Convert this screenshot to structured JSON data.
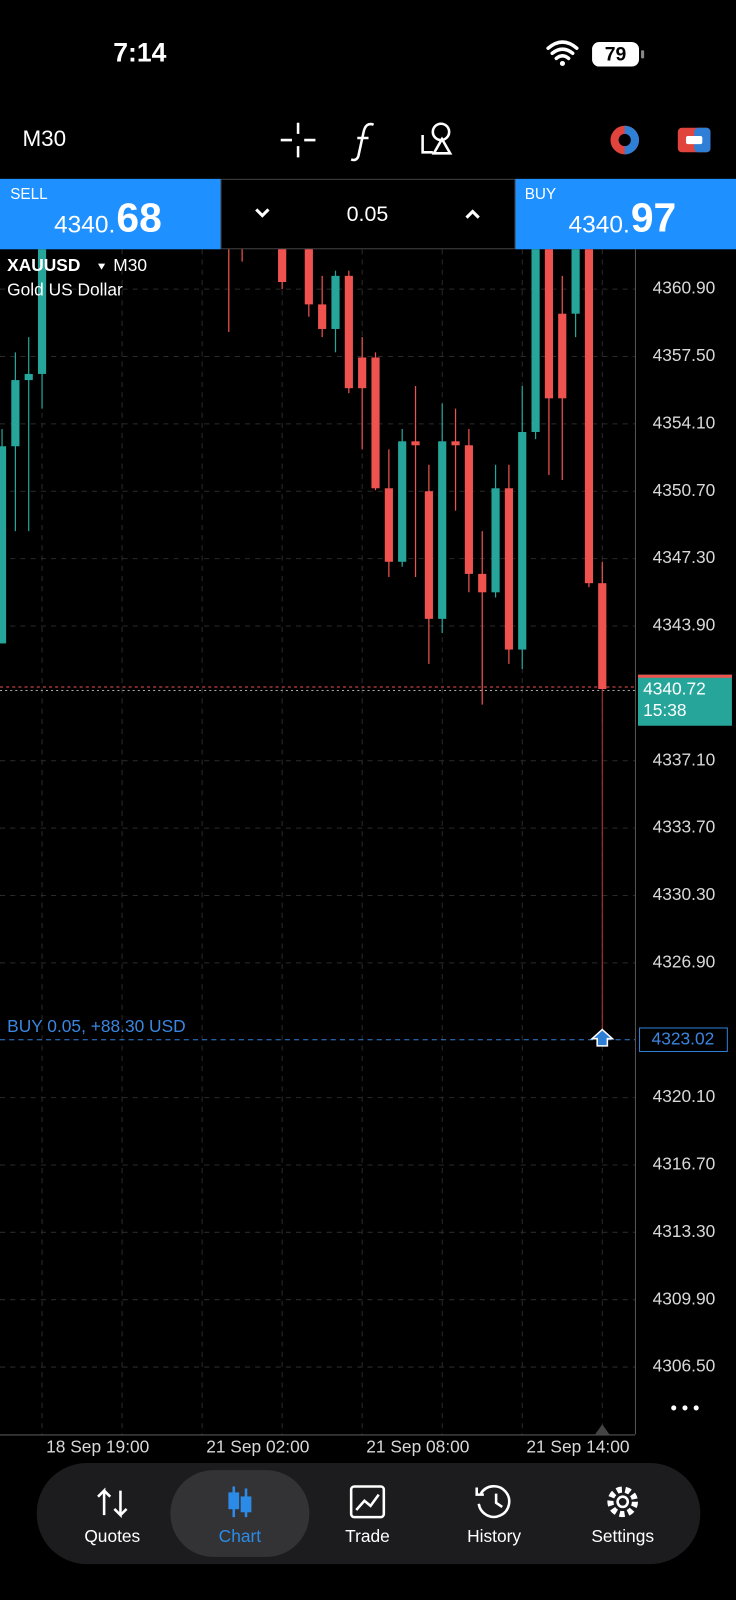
{
  "status_bar": {
    "time": "7:14",
    "battery": "79"
  },
  "toolbar": {
    "timeframe": "M30"
  },
  "trade_panel": {
    "sell": {
      "label": "SELL",
      "price_main": "4340.",
      "price_big": "68"
    },
    "volume": "0.05",
    "buy": {
      "label": "BUY",
      "price_main": "4340.",
      "price_big": "97"
    }
  },
  "chart_data": {
    "type": "candlestick",
    "symbol": "XAUUSD",
    "timeframe": "M30",
    "description": "Gold US Dollar",
    "categories": [
      null,
      null,
      null,
      "18 Sep 19:00",
      null,
      null,
      null,
      null,
      null,
      null,
      null,
      null,
      null,
      null,
      null,
      "21 Sep 02:00",
      null,
      null,
      null,
      null,
      null,
      null,
      null,
      null,
      null,
      null,
      null,
      "21 Sep 08:00",
      null,
      null,
      null,
      null,
      null,
      null,
      null,
      null,
      null,
      null,
      null,
      "21 Sep 14:00",
      null,
      null,
      null,
      null,
      null,
      null
    ],
    "open": [
      4343.02,
      4352.97,
      4356.31,
      4356.62,
      null,
      null,
      null,
      null,
      null,
      null,
      null,
      null,
      null,
      null,
      null,
      null,
      null,
      4364.2,
      4364.0,
      null,
      null,
      4364.0,
      null,
      4364.3,
      4360.13,
      4358.89,
      4361.57,
      4357.45,
      4357.45,
      4350.85,
      4347.14,
      4353.22,
      4350.7,
      4344.26,
      4353.22,
      4353.02,
      4346.53,
      4345.6,
      4350.85,
      4342.71,
      4353.69,
      4364.0,
      4359.66,
      4359.66,
      4364.2,
      4346.06
    ],
    "high": [
      4353.84,
      4357.71,
      4358.48,
      4363.6,
      null,
      null,
      null,
      null,
      null,
      null,
      null,
      null,
      null,
      null,
      null,
      null,
      null,
      4364.8,
      4364.5,
      null,
      null,
      4364.6,
      null,
      4364.9,
      4361.57,
      4361.83,
      4361.83,
      4358.48,
      4357.71,
      4352.81,
      4353.84,
      4356.01,
      4352.04,
      4355.13,
      4354.87,
      4353.84,
      4348.69,
      4352.04,
      4352.04,
      4356.01,
      4363.5,
      4364.5,
      4361.57,
      4363.8,
      4364.6,
      4347.14
    ],
    "low": [
      4343.02,
      4348.69,
      4348.69,
      4354.87,
      null,
      null,
      null,
      null,
      null,
      null,
      null,
      null,
      null,
      null,
      null,
      null,
      null,
      4358.74,
      4362.29,
      null,
      null,
      4360.9,
      null,
      4359.51,
      4358.48,
      4357.71,
      4355.65,
      4352.81,
      4350.75,
      4346.37,
      4346.89,
      4346.37,
      4341.99,
      4343.54,
      4349.72,
      4345.6,
      4339.93,
      4345.34,
      4341.99,
      4341.73,
      4353.33,
      4351.52,
      4351.27,
      4358.48,
      4345.86,
      4340.72
    ],
    "close": [
      4352.97,
      4356.31,
      4356.62,
      4363.4,
      null,
      null,
      null,
      null,
      null,
      null,
      null,
      null,
      null,
      null,
      null,
      null,
      null,
      4363.5,
      4363.3,
      null,
      null,
      4361.26,
      null,
      4360.13,
      4358.89,
      4361.57,
      4355.9,
      4355.9,
      4350.85,
      4347.14,
      4353.22,
      4353.02,
      4344.26,
      4353.22,
      4353.02,
      4346.53,
      4345.6,
      4350.85,
      4342.71,
      4353.69,
      4363.12,
      4355.39,
      4355.39,
      4363.5,
      4346.06,
      4340.72
    ],
    "up_color": "#26a69a",
    "down_color": "#ef5350",
    "ylim": [
      4303.1,
      4362.86
    ],
    "yticks": [
      {
        "value": 4360.9,
        "label": "4360.90"
      },
      {
        "value": 4357.5,
        "label": "4357.50"
      },
      {
        "value": 4354.1,
        "label": "4354.10"
      },
      {
        "value": 4350.7,
        "label": "4350.70"
      },
      {
        "value": 4347.3,
        "label": "4347.30"
      },
      {
        "value": 4343.9,
        "label": "4343.90"
      },
      {
        "value": 4337.1,
        "label": "4337.10"
      },
      {
        "value": 4333.7,
        "label": "4333.70"
      },
      {
        "value": 4330.3,
        "label": "4330.30"
      },
      {
        "value": 4326.9,
        "label": "4326.90"
      },
      {
        "value": 4320.1,
        "label": "4320.10"
      },
      {
        "value": 4316.7,
        "label": "4316.70"
      },
      {
        "value": 4313.3,
        "label": "4313.30"
      },
      {
        "value": 4309.9,
        "label": "4309.90"
      },
      {
        "value": 4306.5,
        "label": "4306.50"
      }
    ],
    "grid": true,
    "price_line": {
      "value": 4340.72,
      "time": "15:38"
    },
    "position": {
      "label": "BUY 0.05, +88.30 USD",
      "value": 4323.02
    }
  },
  "nav": [
    "Quotes",
    "Chart",
    "Trade",
    "History",
    "Settings"
  ]
}
